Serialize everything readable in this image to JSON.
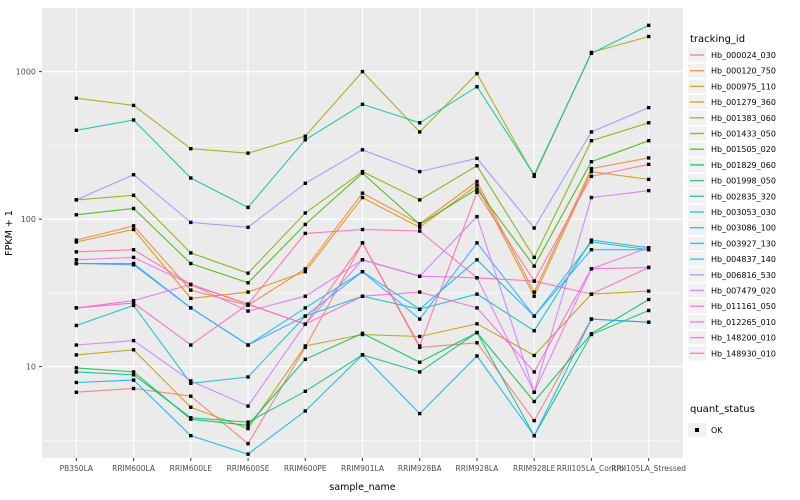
{
  "chart_data": {
    "type": "line",
    "xlabel": "sample_name",
    "ylabel": "FPKM + 1",
    "y_scale": "log10",
    "y_ticks": [
      10,
      100,
      1000
    ],
    "y_tick_labels": [
      "10",
      "100",
      "1000"
    ],
    "y_minor_ticks": [
      3.162,
      31.62,
      316.2
    ],
    "ylim": [
      2.4,
      2700
    ],
    "grid": true,
    "legend_position": "right",
    "panel_bg": "#EBEBEB",
    "grid_color": "#FFFFFF",
    "tick_label_color": "#4D4D4D",
    "axis_title_color": "#000000",
    "marker": {
      "shape": "square",
      "color": "#000000",
      "size": 3.4,
      "legend_label": "OK"
    },
    "legend_title": "tracking_id",
    "legend2_title": "quant_status",
    "legend2_items": [
      {
        "label": "OK"
      }
    ],
    "categories": [
      "PB350LA",
      "RRIM600LA",
      "RRIM600LE",
      "RRIM600SE",
      "RRIM600PE",
      "RRIM901LA",
      "RRIM928BA",
      "RRIM928LA",
      "RRIM928LE",
      "RRII105LA_Control",
      "RRII105LA_Stressed"
    ],
    "series": [
      {
        "name": "Hb_000024_030",
        "color": "#F8766D",
        "values": [
          6.7,
          7.1,
          6.3,
          3.0,
          13.5,
          69,
          13.5,
          14.5,
          4.3,
          21,
          20
        ]
      },
      {
        "name": "Hb_000120_750",
        "color": "#EA8331",
        "values": [
          72,
          90,
          33,
          26,
          46,
          150,
          93,
          180,
          32,
          220,
          260
        ]
      },
      {
        "name": "Hb_000975_110",
        "color": "#D89000",
        "values": [
          70,
          85,
          29,
          32,
          44,
          140,
          88,
          170,
          30,
          210,
          186
        ]
      },
      {
        "name": "Hb_001279_360",
        "color": "#C09B00",
        "values": [
          12,
          13,
          5.3,
          3.8,
          13.8,
          16.5,
          16,
          19.5,
          11.9,
          31,
          32.5
        ]
      },
      {
        "name": "Hb_001383_060",
        "color": "#A3A500",
        "values": [
          660,
          590,
          300,
          280,
          365,
          1000,
          390,
          970,
          195,
          1350,
          1730
        ]
      },
      {
        "name": "Hb_001433_050",
        "color": "#7CAE00",
        "values": [
          135,
          145,
          59,
          43,
          110,
          210,
          135,
          230,
          55,
          340,
          450
        ]
      },
      {
        "name": "Hb_001505_020",
        "color": "#39B600",
        "values": [
          107,
          118,
          50,
          37,
          92,
          205,
          92,
          160,
          48,
          245,
          340
        ]
      },
      {
        "name": "Hb_001829_060",
        "color": "#00BB4E",
        "values": [
          9.8,
          9.2,
          4.4,
          4.0,
          11.2,
          16.8,
          10.7,
          17,
          5.8,
          16.7,
          28.5
        ]
      },
      {
        "name": "Hb_001998_050",
        "color": "#00BF7D",
        "values": [
          9.2,
          8.8,
          4.5,
          4.2,
          6.8,
          12,
          9.2,
          17,
          3.4,
          16.5,
          24
        ]
      },
      {
        "name": "Hb_002835_320",
        "color": "#00C1A3",
        "values": [
          400,
          470,
          190,
          120,
          345,
          600,
          450,
          790,
          200,
          1330,
          2060
        ]
      },
      {
        "name": "Hb_003053_030",
        "color": "#00BFC4",
        "values": [
          19,
          26,
          7.7,
          8.5,
          22,
          30,
          24.5,
          31,
          17.5,
          72,
          64
        ]
      },
      {
        "name": "Hb_003086_100",
        "color": "#00BAE0",
        "values": [
          50,
          50,
          25,
          14,
          25,
          44,
          24.5,
          53,
          22,
          70,
          62
        ]
      },
      {
        "name": "Hb_003927_130",
        "color": "#00B0F6",
        "values": [
          7.8,
          8.1,
          3.4,
          2.55,
          5.0,
          12,
          4.8,
          11.8,
          3.4,
          21,
          20
        ]
      },
      {
        "name": "Hb_004837_140",
        "color": "#35A2FF",
        "values": [
          50,
          49,
          25,
          14,
          22,
          44,
          21,
          69,
          22,
          62,
          62
        ]
      },
      {
        "name": "Hb_006816_530",
        "color": "#9590FF",
        "values": [
          135,
          200,
          95,
          88,
          175,
          295,
          210,
          258,
          87,
          390,
          570
        ]
      },
      {
        "name": "Hb_007479_020",
        "color": "#C77CFF",
        "values": [
          14,
          15,
          8,
          5.4,
          19.4,
          53,
          41,
          104,
          6.7,
          140,
          156
        ]
      },
      {
        "name": "Hb_011161_050",
        "color": "#E76BF3",
        "values": [
          53,
          55,
          36,
          23.8,
          30,
          53,
          41,
          40,
          6.7,
          46,
          64
        ]
      },
      {
        "name": "Hb_012265_010",
        "color": "#FA62DB",
        "values": [
          25,
          28,
          36,
          26.5,
          19.4,
          30,
          32,
          25,
          9.2,
          46,
          47
        ]
      },
      {
        "name": "Hb_148200_010",
        "color": "#FF62BC",
        "values": [
          25,
          27,
          14,
          26.5,
          80,
          85,
          83,
          40,
          38,
          31,
          47
        ]
      },
      {
        "name": "Hb_148930_010",
        "color": "#FF6A98",
        "values": [
          60,
          62,
          36,
          26.5,
          19.4,
          69,
          13.8,
          152,
          38,
          195,
          235
        ]
      }
    ]
  }
}
